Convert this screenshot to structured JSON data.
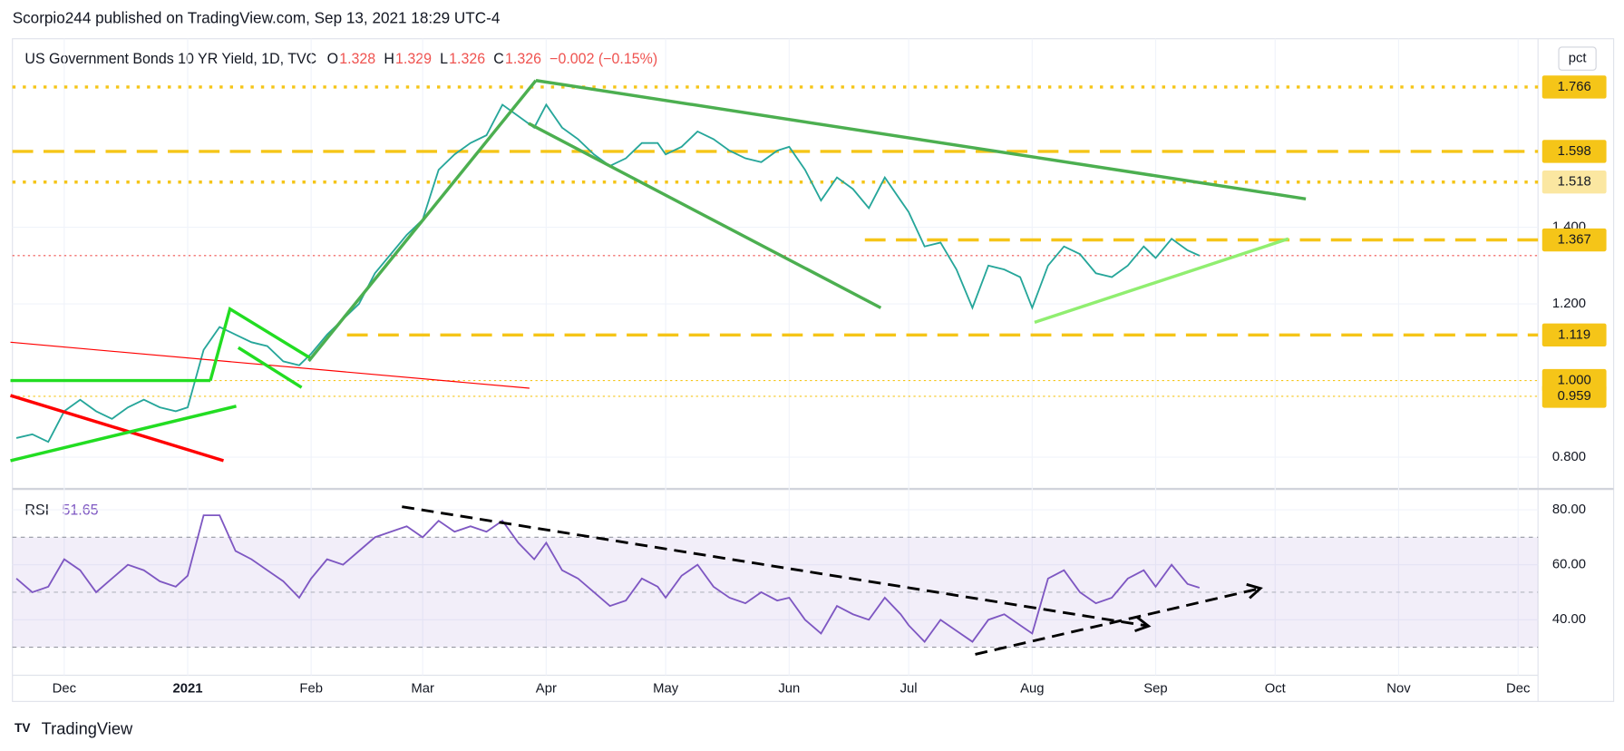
{
  "header": {
    "published": "Scorpio244 published on TradingView.com, Sep 13, 2021 18:29 UTC-4",
    "footer": "TradingView",
    "scale_button": "pct"
  },
  "chart_data": [
    {
      "type": "line",
      "title": "US Government Bonds 10 YR Yield, 1D, TVC",
      "ohlc": [
        {
          "label": "O",
          "value": "1.328"
        },
        {
          "label": "H",
          "value": "1.329"
        },
        {
          "label": "L",
          "value": "1.326"
        },
        {
          "label": "C",
          "value": "1.326"
        }
      ],
      "change": "−0.002 (−0.15%)",
      "x": [
        -12,
        -8,
        -4,
        0,
        4,
        8,
        12,
        16,
        20,
        24,
        28,
        31,
        35,
        39,
        43,
        47,
        51,
        55,
        59,
        62,
        66,
        70,
        74,
        78,
        82,
        86,
        90,
        94,
        98,
        102,
        106,
        110,
        114,
        118,
        121,
        125,
        129,
        133,
        137,
        141,
        145,
        149,
        151,
        155,
        159,
        163,
        167,
        171,
        175,
        179,
        182,
        186,
        190,
        194,
        198,
        202,
        206,
        210,
        212,
        216,
        220,
        224,
        228,
        232,
        236,
        240,
        243,
        247,
        251,
        255,
        259,
        263,
        267,
        271,
        274,
        278,
        282,
        285
      ],
      "xlim": [
        -13,
        370
      ],
      "xticks": [
        {
          "value": 0,
          "label": "Dec"
        },
        {
          "value": 31,
          "label": "2021"
        },
        {
          "value": 62,
          "label": "Feb"
        },
        {
          "value": 90,
          "label": "Mar"
        },
        {
          "value": 121,
          "label": "Apr"
        },
        {
          "value": 151,
          "label": "May"
        },
        {
          "value": 182,
          "label": "Jun"
        },
        {
          "value": 212,
          "label": "Jul"
        },
        {
          "value": 243,
          "label": "Aug"
        },
        {
          "value": 274,
          "label": "Sep"
        },
        {
          "value": 304,
          "label": "Oct"
        },
        {
          "value": 335,
          "label": "Nov"
        },
        {
          "value": 365,
          "label": "Dec"
        }
      ],
      "series": [
        {
          "color": "#26a69a",
          "values": [
            0.85,
            0.86,
            0.84,
            0.92,
            0.95,
            0.92,
            0.9,
            0.93,
            0.95,
            0.93,
            0.92,
            0.93,
            1.08,
            1.14,
            1.12,
            1.1,
            1.09,
            1.05,
            1.04,
            1.07,
            1.12,
            1.16,
            1.2,
            1.28,
            1.33,
            1.38,
            1.42,
            1.55,
            1.59,
            1.62,
            1.64,
            1.72,
            1.69,
            1.66,
            1.72,
            1.66,
            1.63,
            1.59,
            1.56,
            1.58,
            1.62,
            1.62,
            1.59,
            1.61,
            1.65,
            1.63,
            1.6,
            1.58,
            1.57,
            1.6,
            1.61,
            1.55,
            1.47,
            1.53,
            1.5,
            1.45,
            1.53,
            1.47,
            1.44,
            1.35,
            1.36,
            1.29,
            1.19,
            1.3,
            1.29,
            1.27,
            1.19,
            1.3,
            1.35,
            1.33,
            1.28,
            1.27,
            1.3,
            1.35,
            1.32,
            1.37,
            1.34,
            1.326
          ]
        }
      ],
      "ylim": [
        0.72,
        1.892
      ],
      "yticks": [
        {
          "value": 0.8,
          "label": "0.800"
        },
        {
          "value": 1.2,
          "label": "1.200"
        },
        {
          "value": 1.4,
          "label": "1.400"
        }
      ],
      "levels": [
        {
          "value": 1.766,
          "label": "1.766",
          "style": "dotted",
          "from": -13,
          "color": "#f5c518",
          "badge": "#f5c518"
        },
        {
          "value": 1.598,
          "label": "1.598",
          "style": "dashed",
          "from": -13,
          "color": "#f5c518",
          "badge": "#f5c518"
        },
        {
          "value": 1.518,
          "label": "1.518",
          "style": "dotted",
          "from": -13,
          "color": "#f5c518",
          "badge": "#fbe7a1"
        },
        {
          "value": 1.367,
          "label": "1.367",
          "style": "dashed",
          "from": 201,
          "color": "#f5c518",
          "badge": "#f5c518"
        },
        {
          "value": 1.119,
          "label": "1.119",
          "style": "dashed",
          "from": 71,
          "color": "#f5c518",
          "badge": "#f5c518"
        },
        {
          "value": 1.0,
          "label": "1.000",
          "style": "thin",
          "from": -13,
          "color": "#f5c518",
          "badge": "#f5c518"
        },
        {
          "value": 0.959,
          "label": "0.959",
          "style": "thin",
          "from": -13,
          "color": "#f5c518",
          "badge": "#f5c518"
        },
        {
          "value": 1.326,
          "style": "thin",
          "from": -13,
          "color": "#ef5350"
        }
      ],
      "trendlines": [
        {
          "points": [
            [
              -13.5,
              0.961
            ],
            [
              40,
              0.791
            ]
          ],
          "color": "#ff0000",
          "width": 3
        },
        {
          "points": [
            [
              -13.5,
              1.1
            ],
            [
              116.8,
              0.98
            ]
          ],
          "color": "#ff0000",
          "width": 1
        },
        {
          "points": [
            [
              -13.5,
              1.0
            ],
            [
              36.7,
              1.0
            ]
          ],
          "color": "#22dd22",
          "width": 3
        },
        {
          "points": [
            [
              -13.5,
              0.791
            ],
            [
              43.2,
              0.933
            ]
          ],
          "color": "#22dd22",
          "width": 3
        },
        {
          "points": [
            [
              36.7,
              1.0
            ],
            [
              41.6,
              1.187
            ],
            [
              62.2,
              1.056
            ]
          ],
          "color": "#22dd22",
          "width": 3
        },
        {
          "points": [
            [
              43.7,
              1.086
            ],
            [
              59.6,
              0.982
            ]
          ],
          "color": "#22dd22",
          "width": 3
        },
        {
          "points": [
            [
              61.4,
              1.051
            ],
            [
              118.4,
              1.783
            ]
          ],
          "color": "#4caf50",
          "width": 3
        },
        {
          "points": [
            [
              118.4,
              1.783
            ],
            [
              311.7,
              1.474
            ]
          ],
          "color": "#4caf50",
          "width": 3
        },
        {
          "points": [
            [
              116.6,
              1.671
            ],
            [
              205,
              1.19
            ]
          ],
          "color": "#4caf50",
          "width": 3
        },
        {
          "points": [
            [
              243.6,
              1.152
            ],
            [
              307.3,
              1.37
            ]
          ],
          "color": "#90ee70",
          "width": 3
        }
      ]
    },
    {
      "type": "line",
      "title": "RSI",
      "last": "51.65",
      "series": [
        {
          "color": "#7e57c2",
          "values": [
            55,
            50,
            52,
            62,
            58,
            50,
            55,
            60,
            58,
            54,
            52,
            56,
            78,
            78,
            65,
            62,
            58,
            54,
            48,
            55,
            62,
            60,
            65,
            70,
            72,
            74,
            70,
            76,
            72,
            74,
            72,
            76,
            68,
            62,
            68,
            58,
            55,
            50,
            45,
            47,
            55,
            52,
            48,
            56,
            60,
            52,
            48,
            46,
            50,
            47,
            48,
            40,
            35,
            45,
            42,
            40,
            48,
            42,
            38,
            32,
            40,
            36,
            32,
            40,
            42,
            38,
            35,
            55,
            58,
            50,
            46,
            48,
            55,
            58,
            52,
            60,
            53,
            51.65
          ]
        }
      ],
      "ylim": [
        19.8,
        87.2
      ],
      "yticks": [
        {
          "value": 40,
          "label": "40.00"
        },
        {
          "value": 60,
          "label": "60.00"
        },
        {
          "value": 80,
          "label": "80.00"
        }
      ],
      "bands": [
        30,
        70
      ],
      "midline": 50,
      "trendlines": [
        {
          "points": [
            [
              84.8,
              81.1
            ],
            [
              272.2,
              37.7
            ]
          ],
          "color": "#000000",
          "width": 2.5
        },
        {
          "points": [
            [
              228.7,
              27.4
            ],
            [
              300.3,
              51.4
            ]
          ],
          "color": "#000000",
          "width": 2.5
        }
      ]
    }
  ]
}
